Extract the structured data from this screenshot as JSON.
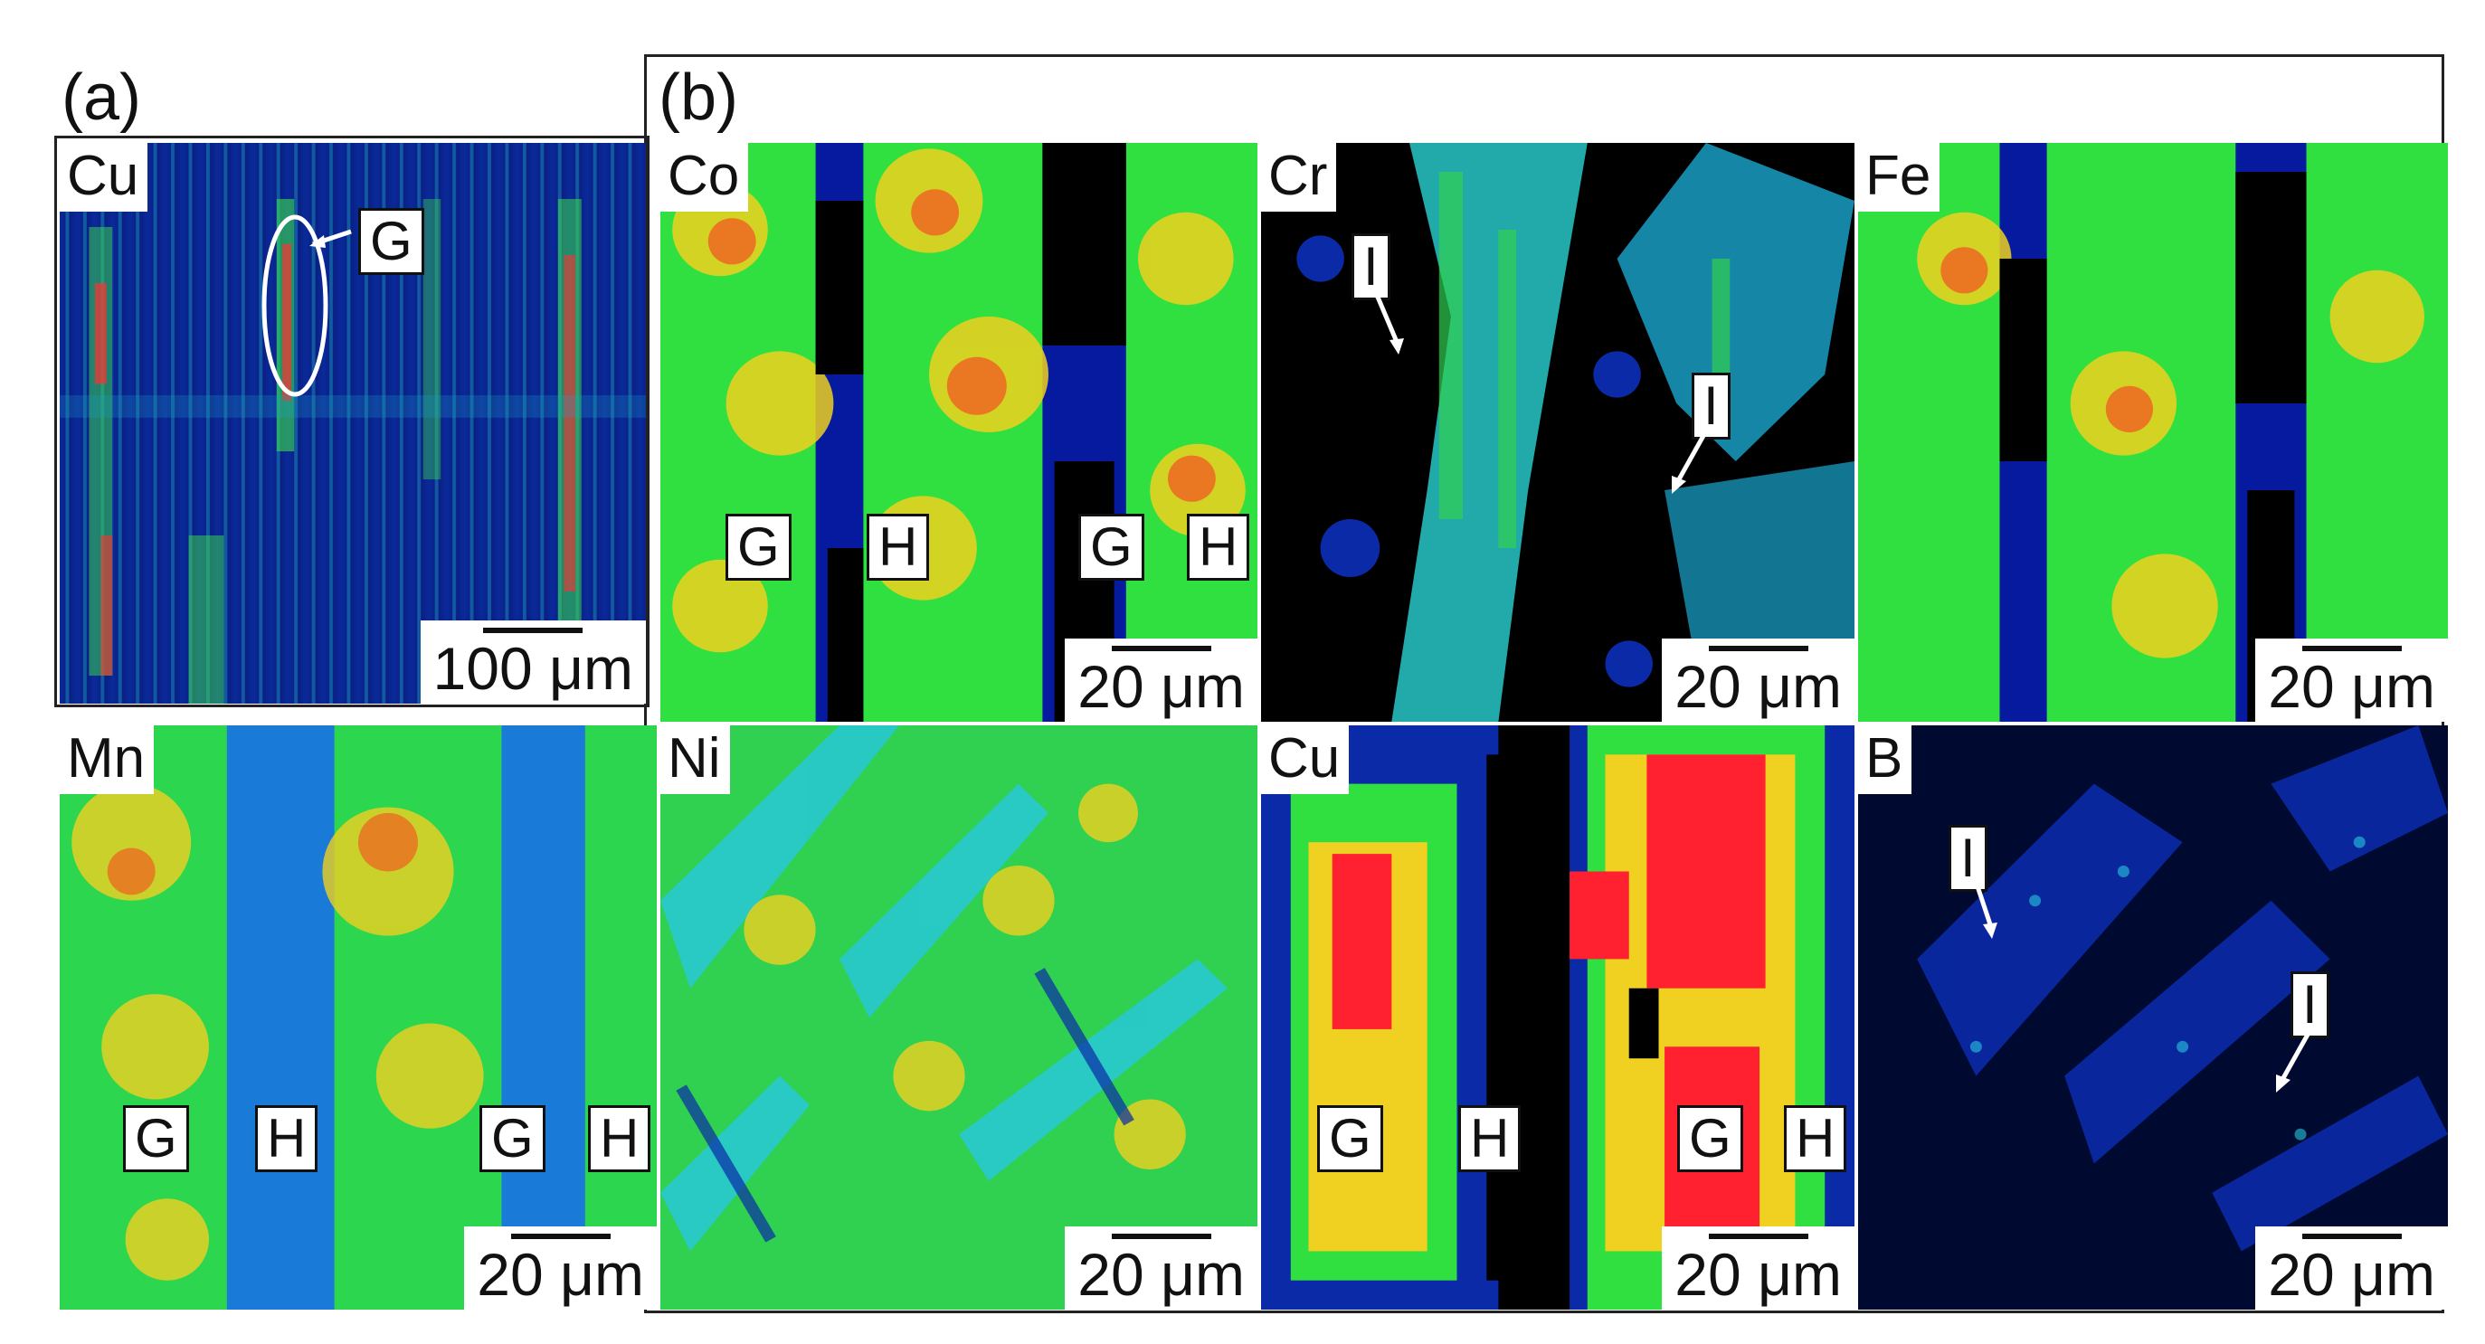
{
  "figure": {
    "panel_a_label": "(a)",
    "panel_b_label": "(b)"
  },
  "maps": {
    "a_cu": {
      "element": "Cu",
      "scale": "100 μm",
      "marker": "G"
    },
    "co": {
      "element": "Co",
      "scale": "20 μm",
      "markers": [
        "G",
        "H",
        "G",
        "H"
      ]
    },
    "cr": {
      "element": "Cr",
      "scale": "20 μm",
      "markers": [
        "I",
        "I"
      ]
    },
    "fe": {
      "element": "Fe",
      "scale": "20 μm"
    },
    "mn": {
      "element": "Mn",
      "scale": "20 μm",
      "markers": [
        "G",
        "H",
        "G",
        "H"
      ]
    },
    "ni": {
      "element": "Ni",
      "scale": "20 μm"
    },
    "cu": {
      "element": "Cu",
      "scale": "20 μm",
      "markers": [
        "G",
        "H",
        "G",
        "H"
      ]
    },
    "b": {
      "element": "B",
      "scale": "20 μm",
      "markers": [
        "I",
        "I"
      ]
    }
  },
  "colors": {
    "low": "#000000",
    "background_blue": "#0018a8",
    "mid_cyan": "#28c8e0",
    "mid_green": "#30e040",
    "high_yellow": "#f0e020",
    "high_orange": "#f07020",
    "max_red": "#ff2030"
  }
}
